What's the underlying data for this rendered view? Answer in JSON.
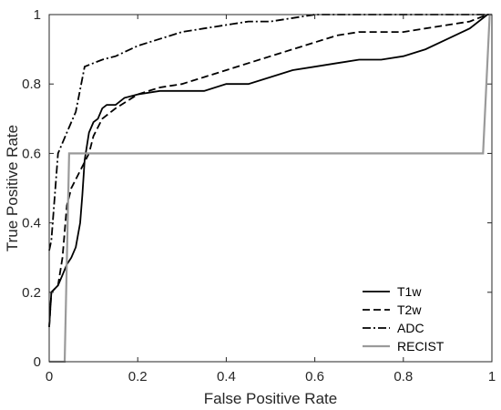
{
  "chart_data": {
    "type": "line",
    "title": "",
    "xlabel": "False Positive Rate",
    "ylabel": "True Positive Rate",
    "xlim": [
      0,
      1
    ],
    "ylim": [
      0,
      1
    ],
    "xticks": [
      "0",
      "0.2",
      "0.4",
      "0.6",
      "0.8",
      "1"
    ],
    "yticks": [
      "0",
      "0.2",
      "0.4",
      "0.6",
      "0.8",
      "1"
    ],
    "grid": false,
    "legend_position": "bottom-right",
    "series": [
      {
        "name": "T1w",
        "color": "#000000",
        "dash": "solid",
        "x": [
          0,
          0.005,
          0.02,
          0.03,
          0.04,
          0.05,
          0.06,
          0.07,
          0.075,
          0.08,
          0.09,
          0.1,
          0.11,
          0.12,
          0.13,
          0.15,
          0.17,
          0.2,
          0.25,
          0.3,
          0.35,
          0.4,
          0.45,
          0.5,
          0.55,
          0.6,
          0.65,
          0.7,
          0.75,
          0.8,
          0.85,
          0.9,
          0.95,
          0.99,
          1.0
        ],
        "y": [
          0.1,
          0.2,
          0.22,
          0.25,
          0.28,
          0.3,
          0.33,
          0.4,
          0.48,
          0.58,
          0.66,
          0.69,
          0.7,
          0.73,
          0.74,
          0.74,
          0.76,
          0.77,
          0.78,
          0.78,
          0.78,
          0.8,
          0.8,
          0.82,
          0.84,
          0.85,
          0.86,
          0.87,
          0.87,
          0.88,
          0.9,
          0.93,
          0.96,
          1.0,
          1.0
        ]
      },
      {
        "name": "T2w",
        "color": "#000000",
        "dash": "dashed",
        "x": [
          0,
          0.005,
          0.02,
          0.03,
          0.04,
          0.05,
          0.07,
          0.09,
          0.1,
          0.12,
          0.15,
          0.2,
          0.25,
          0.3,
          0.35,
          0.4,
          0.45,
          0.5,
          0.55,
          0.6,
          0.65,
          0.7,
          0.75,
          0.8,
          0.85,
          0.9,
          0.95,
          0.99,
          1.0
        ],
        "y": [
          0.1,
          0.2,
          0.22,
          0.3,
          0.45,
          0.5,
          0.55,
          0.6,
          0.65,
          0.7,
          0.73,
          0.77,
          0.79,
          0.8,
          0.82,
          0.84,
          0.86,
          0.88,
          0.9,
          0.92,
          0.94,
          0.95,
          0.95,
          0.95,
          0.96,
          0.97,
          0.98,
          1.0,
          1.0
        ]
      },
      {
        "name": "ADC",
        "color": "#000000",
        "dash": "dashdot",
        "x": [
          0,
          0.005,
          0.02,
          0.04,
          0.06,
          0.08,
          0.1,
          0.12,
          0.15,
          0.2,
          0.25,
          0.3,
          0.35,
          0.4,
          0.45,
          0.5,
          0.55,
          0.6,
          0.65,
          0.7,
          0.8,
          0.9,
          1.0
        ],
        "y": [
          0.32,
          0.35,
          0.6,
          0.66,
          0.72,
          0.85,
          0.86,
          0.87,
          0.88,
          0.91,
          0.93,
          0.95,
          0.96,
          0.97,
          0.98,
          0.98,
          0.99,
          1.0,
          1.0,
          1.0,
          1.0,
          1.0,
          1.0
        ]
      },
      {
        "name": "RECIST",
        "color": "#9a9a9a",
        "dash": "solid",
        "x": [
          0,
          0.035,
          0.045,
          0.98,
          0.995,
          1.0
        ],
        "y": [
          0,
          0,
          0.6,
          0.6,
          1.0,
          1.0
        ]
      }
    ]
  }
}
